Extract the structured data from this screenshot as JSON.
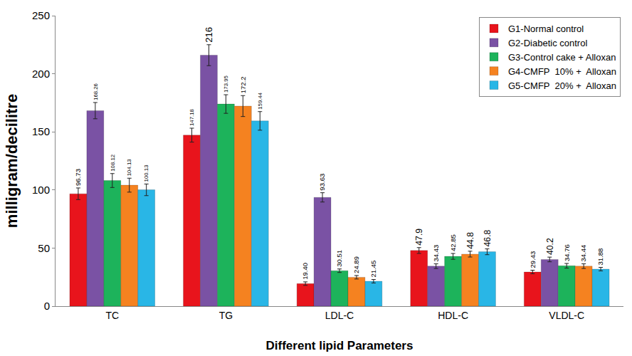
{
  "chart_data": {
    "type": "bar",
    "x_label": "Different lipid Parameters",
    "y_label": "milligram/decilitre",
    "categories": [
      "TC",
      "TG",
      "LDL-C",
      "HDL-C",
      "VLDL-C"
    ],
    "series": [
      {
        "name": "G1-Normal control",
        "color": "#e8141c",
        "values": [
          96.73,
          147.18,
          19.4,
          47.9,
          29.43
        ],
        "value_labels": [
          "96.73",
          "147.18",
          "19.40",
          "47.9",
          "29.43"
        ],
        "errors": [
          5,
          6,
          1.5,
          2.5,
          1.5
        ]
      },
      {
        "name": "G2-Diabetic control",
        "color": "#7a52a4",
        "values": [
          168.26,
          216,
          93.63,
          34.43,
          40.2
        ],
        "errors": [
          7,
          9,
          4,
          2,
          2
        ]
      },
      {
        "name": "G3-Control cake + Alloxan",
        "color": "#1db35b",
        "values": [
          108.12,
          173.95,
          30.51,
          42.85,
          34.76
        ],
        "errors": [
          6,
          8,
          1.5,
          2.5,
          2
        ]
      },
      {
        "name": "G4-CMFP  10% +  Alloxan",
        "color": "#f58220",
        "values": [
          104.13,
          172.2,
          24.89,
          44.8,
          34.44
        ],
        "errors": [
          6,
          9,
          1.5,
          2.5,
          2
        ]
      },
      {
        "name": "G5-CMFP  20% +  Alloxan",
        "color": "#29b6e6",
        "values": [
          100.13,
          159.44,
          21.45,
          46.8,
          31.88
        ],
        "errors": [
          5,
          8,
          1.5,
          2.5,
          1.5
        ]
      }
    ],
    "ylim": [
      0,
      250
    ],
    "yticks": [
      0,
      50,
      100,
      150,
      200,
      250
    ],
    "grid": false,
    "data_labels": true,
    "legend": "top-right"
  }
}
